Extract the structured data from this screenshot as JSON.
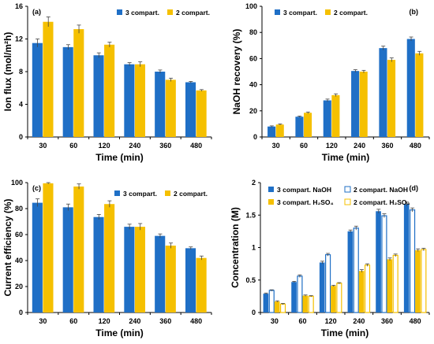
{
  "chart_data": [
    {
      "type": "bar",
      "panel_label": "(a)",
      "categories": [
        "30",
        "60",
        "120",
        "240",
        "360",
        "480"
      ],
      "xlabel": "Time (min)",
      "ylabel": "Ion flux (mol/m²h)",
      "ylim": [
        0,
        16
      ],
      "yticks": [
        "0",
        "4",
        "8",
        "12",
        "16"
      ],
      "legend_position": "top-right",
      "series": [
        {
          "name": "3 compart.",
          "color": "#1f6fc6",
          "values": [
            11.5,
            11.0,
            10.0,
            8.9,
            8.0,
            6.7
          ],
          "errors": [
            0.5,
            0.3,
            0.3,
            0.2,
            0.2,
            0.1
          ]
        },
        {
          "name": "2 compart.",
          "color": "#f5c000",
          "values": [
            14.1,
            13.2,
            11.3,
            8.9,
            7.0,
            5.7
          ],
          "errors": [
            0.6,
            0.5,
            0.3,
            0.3,
            0.2,
            0.1
          ]
        }
      ]
    },
    {
      "type": "bar",
      "panel_label": "(b)",
      "categories": [
        "30",
        "60",
        "120",
        "240",
        "360",
        "480"
      ],
      "xlabel": "Time (min)",
      "ylabel": "NaOH recovery (%)",
      "ylim": [
        0,
        100
      ],
      "yticks": [
        "0",
        "20",
        "40",
        "60",
        "80",
        "100"
      ],
      "legend_position": "top-left",
      "series": [
        {
          "name": "3 compart.",
          "color": "#1f6fc6",
          "values": [
            8.0,
            15.5,
            28.0,
            50.5,
            68.0,
            75.0
          ],
          "errors": [
            0.5,
            0.5,
            1.0,
            1.0,
            1.5,
            1.5
          ]
        },
        {
          "name": "2 compart.",
          "color": "#f5c000",
          "values": [
            9.5,
            18.5,
            32.0,
            50.0,
            59.0,
            64.0
          ],
          "errors": [
            0.5,
            0.6,
            1.0,
            1.0,
            1.5,
            1.5
          ]
        }
      ]
    },
    {
      "type": "bar",
      "panel_label": "(c)",
      "categories": [
        "30",
        "60",
        "120",
        "240",
        "360",
        "480"
      ],
      "xlabel": "Time (min)",
      "ylabel": "Current efficiency (%)",
      "ylim": [
        0,
        100
      ],
      "yticks": [
        "0",
        "20",
        "40",
        "60",
        "80",
        "100"
      ],
      "legend_position": "top-right",
      "series": [
        {
          "name": "3 compart.",
          "color": "#1f6fc6",
          "values": [
            84.5,
            81.0,
            73.5,
            66.0,
            59.0,
            49.5
          ],
          "errors": [
            3.0,
            2.5,
            2.0,
            2.0,
            1.5,
            1.0
          ]
        },
        {
          "name": "2 compart.",
          "color": "#f5c000",
          "values": [
            99.5,
            97.0,
            83.5,
            66.0,
            51.5,
            42.0
          ],
          "errors": [
            0.5,
            2.0,
            2.5,
            2.5,
            2.0,
            1.5
          ]
        }
      ]
    },
    {
      "type": "bar",
      "panel_label": "(d)",
      "categories": [
        "30",
        "60",
        "120",
        "240",
        "360",
        "480"
      ],
      "xlabel": "Time (min)",
      "ylabel": "Concentration (M)",
      "ylim": [
        0,
        2
      ],
      "yticks": [
        "0",
        "0.5",
        "1",
        "1.5",
        "2"
      ],
      "legend_position": "top",
      "series": [
        {
          "name": "3 compart. NaOH",
          "color": "#1f6fc6",
          "fill": "solid",
          "values": [
            0.29,
            0.47,
            0.77,
            1.25,
            1.56,
            1.67
          ],
          "errors": [
            0.01,
            0.01,
            0.02,
            0.02,
            0.03,
            0.03
          ]
        },
        {
          "name": "2 compart. NaOH",
          "color": "#1f6fc6",
          "fill": "hollow",
          "values": [
            0.34,
            0.56,
            0.89,
            1.3,
            1.49,
            1.58
          ],
          "errors": [
            0.01,
            0.02,
            0.02,
            0.03,
            0.03,
            0.03
          ]
        },
        {
          "name": "3 compart. H₂SO₄",
          "color": "#f5c000",
          "fill": "solid",
          "values": [
            0.17,
            0.26,
            0.41,
            0.64,
            0.82,
            0.96
          ],
          "errors": [
            0.01,
            0.01,
            0.01,
            0.02,
            0.02,
            0.02
          ]
        },
        {
          "name": "2 compart. H₂SO₄",
          "color": "#f5c000",
          "fill": "hollow",
          "values": [
            0.13,
            0.25,
            0.45,
            0.73,
            0.88,
            0.97
          ],
          "errors": [
            0.01,
            0.01,
            0.01,
            0.02,
            0.02,
            0.02
          ]
        }
      ]
    }
  ]
}
